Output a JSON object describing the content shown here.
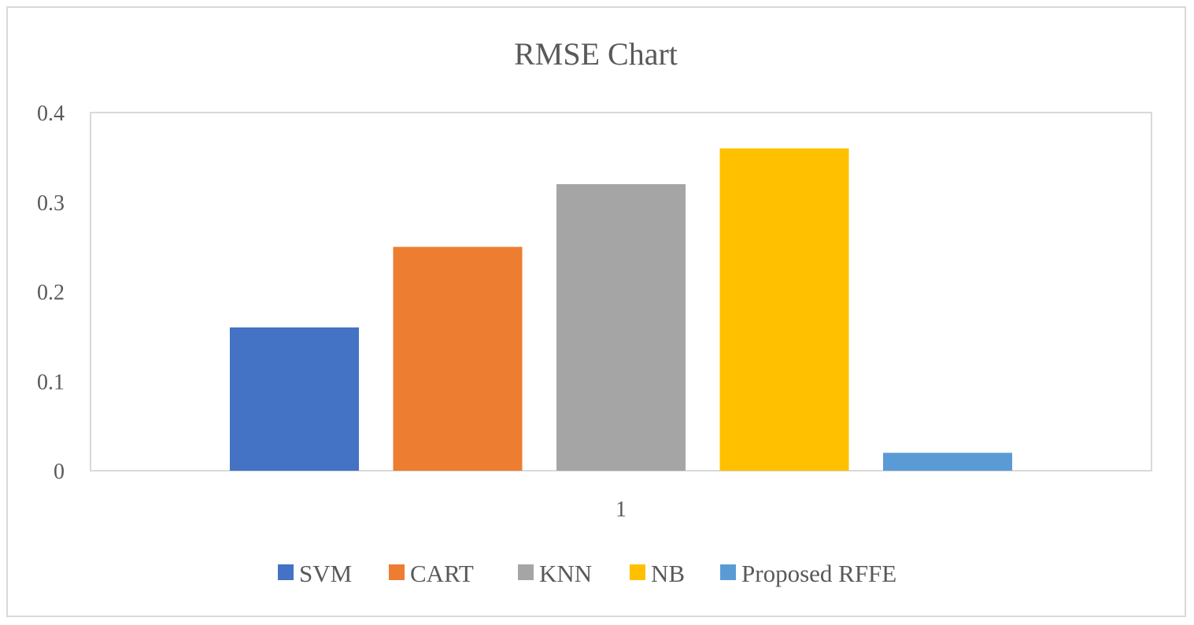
{
  "chart_data": {
    "type": "bar",
    "title": "RMSE Chart",
    "categories": [
      "1"
    ],
    "series": [
      {
        "name": "SVM",
        "values": [
          0.16
        ],
        "color": "#4472C4"
      },
      {
        "name": "CART",
        "values": [
          0.25
        ],
        "color": "#ED7D31"
      },
      {
        "name": "KNN",
        "values": [
          0.32
        ],
        "color": "#A5A5A5"
      },
      {
        "name": "NB",
        "values": [
          0.36
        ],
        "color": "#FFC000"
      },
      {
        "name": "Proposed RFFE",
        "values": [
          0.02
        ],
        "color": "#5B9BD5"
      }
    ],
    "yticks": [
      "0",
      "0.1",
      "0.2",
      "0.3",
      "0.4"
    ],
    "ylim": [
      0,
      0.4
    ],
    "grid": false,
    "legend_position": "bottom"
  }
}
